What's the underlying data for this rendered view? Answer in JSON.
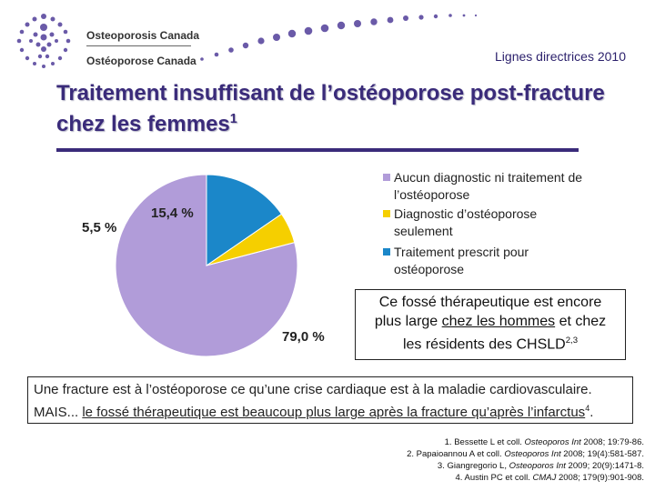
{
  "header": {
    "org_en": "Osteoporosis Canada",
    "org_fr": "Ostéoporose Canada",
    "guideline": "Lignes directrices 2010"
  },
  "title": {
    "text": "Traitement insuffisant de l’ostéoporose post-fracture chez les femmes",
    "sup": "1"
  },
  "chart_data": {
    "type": "pie",
    "slices": [
      {
        "label": "Aucun diagnostic ni traitement de l’ostéoporose",
        "value": 79.0,
        "value_label": "79,0 %",
        "color": "#b19cd9"
      },
      {
        "label": "Diagnostic d’ostéoporose seulement",
        "value": 5.5,
        "value_label": "5,5 %",
        "color": "#f5cf00"
      },
      {
        "label": "Traitement prescrit pour ostéoporose",
        "value": 15.4,
        "value_label": "15,4 %",
        "color": "#1b87c9"
      }
    ],
    "legend_lines": [
      [
        "Aucun diagnostic ni traitement de",
        "l’ostéoporose"
      ],
      [
        "Diagnostic d’ostéoporose",
        "seulement"
      ],
      [
        "Traitement prescrit pour",
        "ostéoporose"
      ]
    ],
    "legend_position": "right"
  },
  "callout": {
    "line1": "Ce fossé thérapeutique est encore",
    "line2_a": "plus large ",
    "line2_ul": "chez les hommes",
    "line2_b": " et chez",
    "line3": "les résidents des CHSLD",
    "line3_sup": "2,3"
  },
  "main_text": {
    "line1": "Une fracture est à l’ostéoporose ce qu’une crise cardiaque est à la maladie cardiovasculaire.",
    "line2_a": "MAIS... ",
    "line2_ul": "le fossé thérapeutique est beaucoup plus large après la fracture qu’après l’infarctus",
    "line2_sup": "4",
    "line2_end": "."
  },
  "references": [
    {
      "before": "1. Bessette L et coll. ",
      "journal": "Osteoporos Int",
      "after": " 2008; 19:79-86."
    },
    {
      "before": "2. Papaioannou A et coll. ",
      "journal": "Osteoporos Int",
      "after": " 2008; 19(4):581-587."
    },
    {
      "before": "3. Giangregorio L, ",
      "journal": "Osteoporos Int",
      "after": " 2009; 20(9):1471-8."
    },
    {
      "before": "4. Austin PC et coll. ",
      "journal": "CMAJ",
      "after": " 2008; 179(9):901-908."
    }
  ]
}
